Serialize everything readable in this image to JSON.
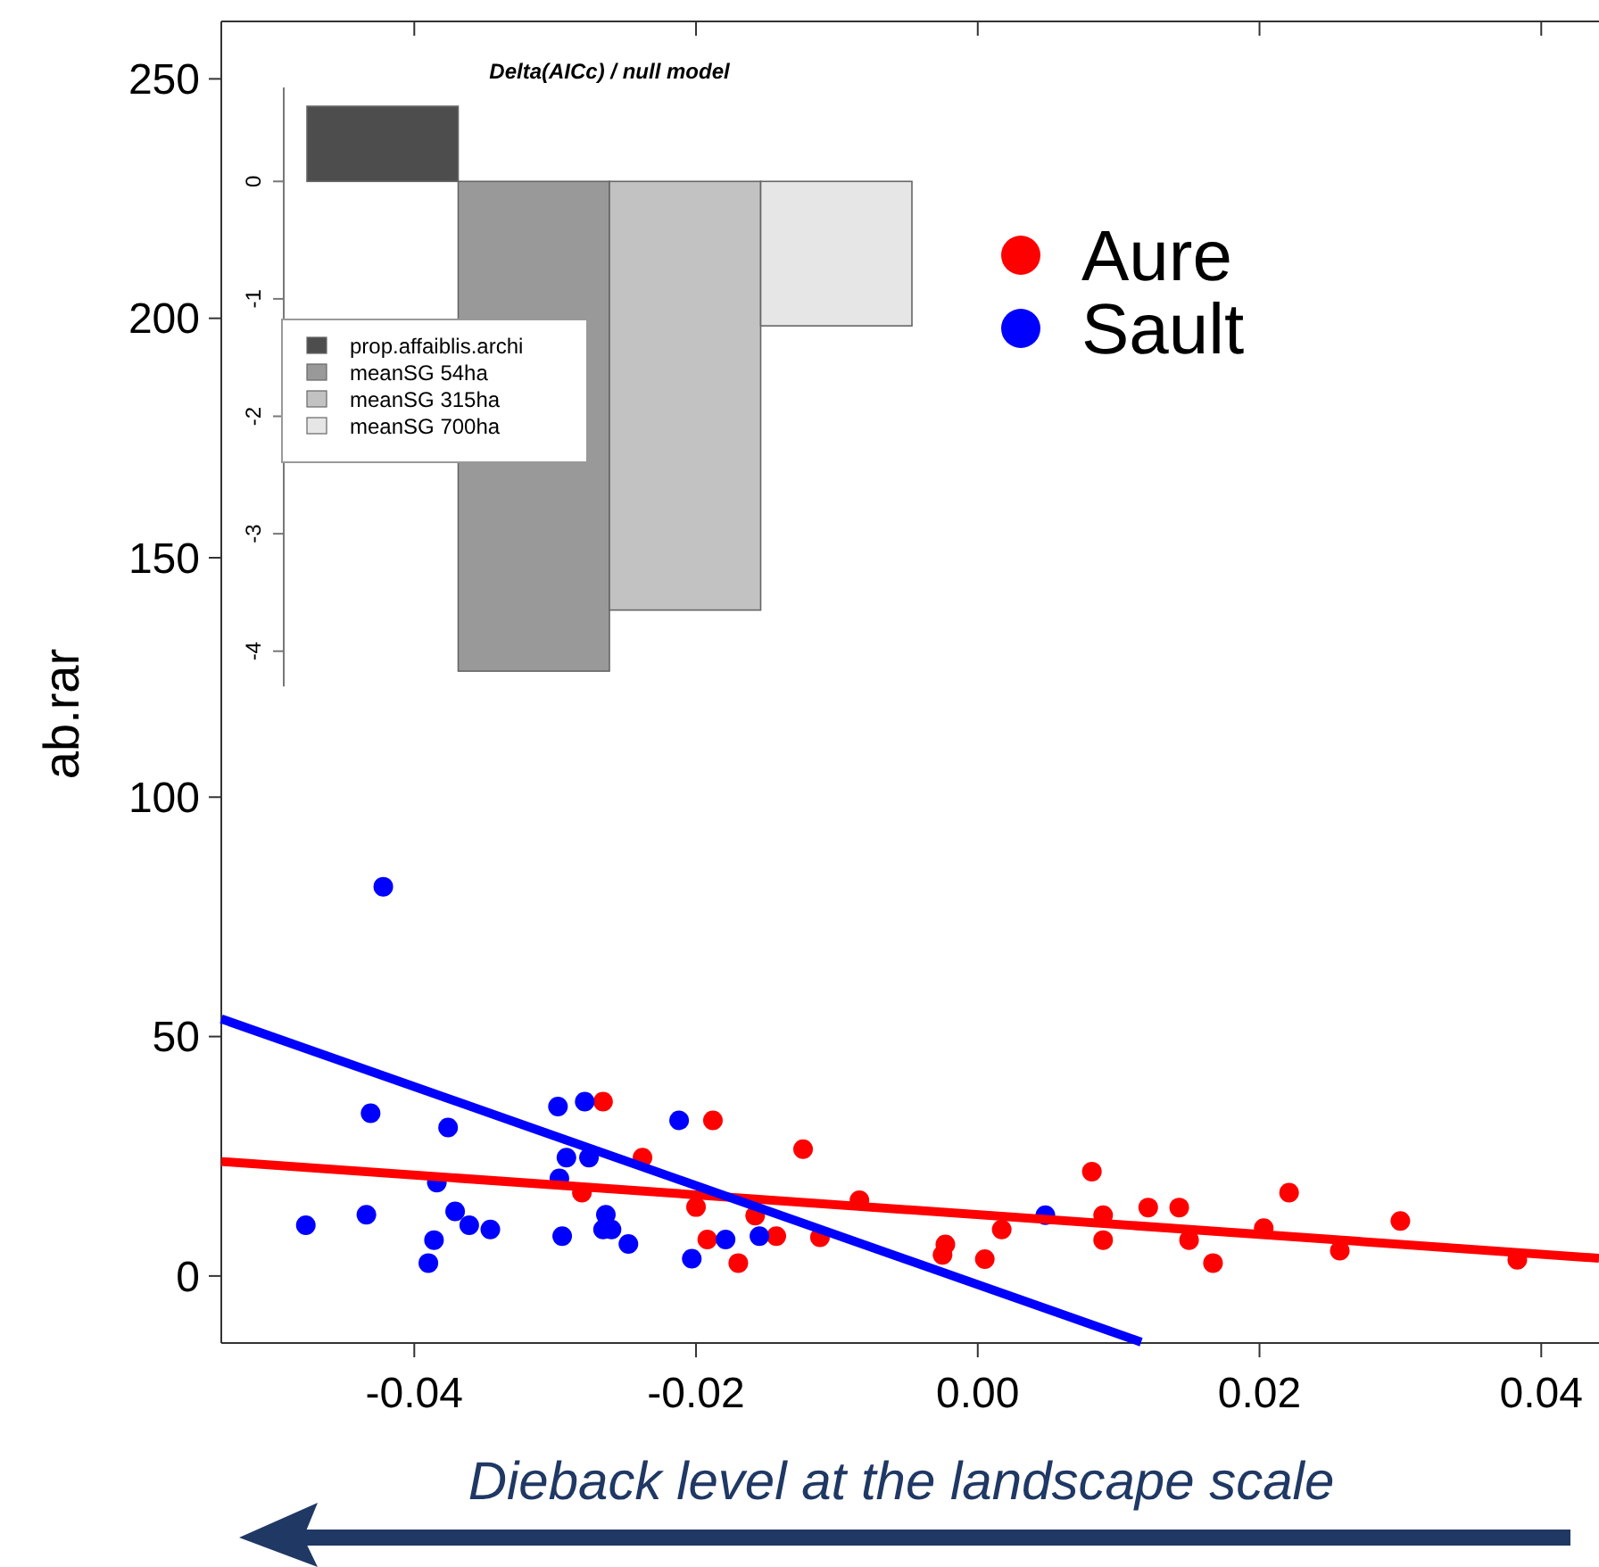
{
  "chart_data": [
    {
      "type": "scatter",
      "ylabel": "ab.rar",
      "xlabel": "Dieback level at the landscape scale",
      "xlim": [
        -0.0537,
        0.0441
      ],
      "xticks": [
        -0.04,
        -0.02,
        {
          "value": 0,
          "label": "0.00"
        },
        0.02,
        0.04
      ],
      "ylim": [
        -14,
        262
      ],
      "yticks": [
        0,
        50,
        100,
        150,
        200,
        250
      ],
      "legend": "top right",
      "marker": "circle",
      "grid": false,
      "series": [
        {
          "name": "Aure",
          "color": "#ff0000",
          "x": [
            -0.0266,
            -0.0188,
            -0.0238,
            -0.0124,
            -0.0281,
            -0.02,
            -0.0158,
            -0.0192,
            -0.0143,
            -0.017,
            -0.0084,
            -0.0112,
            -0.0023,
            -0.0025,
            0.0005,
            0.0017,
            0.0081,
            0.0089,
            0.0089,
            0.0121,
            0.0143,
            0.015,
            0.0167,
            0.0203,
            0.0221,
            0.0257,
            0.03,
            0.0383
          ],
          "values": [
            36.4,
            32.5,
            24.7,
            26.5,
            17.4,
            14.4,
            12.6,
            7.6,
            8.3,
            2.7,
            15.8,
            8.1,
            6.6,
            4.4,
            3.5,
            9.7,
            21.8,
            12.7,
            7.5,
            14.3,
            14.3,
            7.5,
            2.7,
            10,
            17.4,
            5.3,
            11.5,
            3.4
          ]
        },
        {
          "name": "Sault",
          "color": "#0000ff",
          "x": [
            -0.0477,
            -0.0431,
            -0.0434,
            -0.0376,
            -0.0384,
            -0.0371,
            -0.0361,
            -0.0346,
            -0.0386,
            -0.039,
            -0.0298,
            -0.0279,
            -0.0292,
            -0.0276,
            -0.0297,
            -0.0295,
            -0.0264,
            -0.0266,
            -0.026,
            -0.0248,
            -0.0212,
            -0.0203,
            -0.0179,
            -0.0155,
            -0.0422,
            0.0048
          ],
          "values": [
            10.6,
            34,
            12.8,
            31,
            19.5,
            13.5,
            10.6,
            9.7,
            7.5,
            2.7,
            35.4,
            36.4,
            24.7,
            24.7,
            20.4,
            8.3,
            12.8,
            9.7,
            9.7,
            6.7,
            32.5,
            3.6,
            7.6,
            8.3,
            81.3,
            12.7
          ]
        },
        {
          "type": "line",
          "color": "#ff0000",
          "marker": "none",
          "x": [
            -0.0537,
            0.0441
          ],
          "values": [
            23.9,
            3.7
          ]
        },
        {
          "type": "line",
          "color": "#0000ff",
          "marker": "none",
          "x": [
            -0.0537,
            0.0116
          ],
          "values": [
            53.7,
            -13.8
          ]
        }
      ]
    },
    {
      "type": "bar",
      "title": "Delta(AICc) / null model",
      "categories": [
        null
      ],
      "ylim": [
        -4.3,
        0.8
      ],
      "yticks": [
        0,
        -1,
        -2,
        -3,
        -4
      ],
      "legend": "left",
      "grid": false,
      "series": [
        {
          "name": "prop.affaiblis.archi",
          "color": "#4d4d4d",
          "values": [
            0.64
          ]
        },
        {
          "name": "meanSG 54ha",
          "color": "#999999",
          "values": [
            -4.17
          ]
        },
        {
          "name": "meanSG 315ha",
          "color": "#c2c2c2",
          "values": [
            -3.65
          ]
        },
        {
          "name": "meanSG 700ha",
          "color": "#e6e6e6",
          "values": [
            -1.23
          ]
        }
      ]
    }
  ]
}
